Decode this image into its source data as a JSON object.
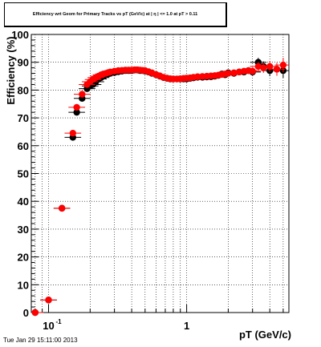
{
  "chart_data": {
    "type": "scatter",
    "title": "Efficiency wrt Geom for Primary Tracks vs pT (GeV/c) at | η | <= 1.0 at pT > 0.11",
    "xlabel": "pT (GeV/c)",
    "ylabel": "Efficiency (%)",
    "xscale": "log",
    "xlim": [
      0.075,
      5.5
    ],
    "ylim": [
      0,
      100
    ],
    "y_ticks": [
      0,
      10,
      20,
      30,
      40,
      50,
      60,
      70,
      80,
      90,
      100
    ],
    "y_tick_labels": [
      "0",
      "10",
      "20",
      "30",
      "40",
      "50",
      "60",
      "70",
      "80",
      "90",
      "100"
    ],
    "x_major_tick_labels": [
      {
        "value": 0.1,
        "label": "10",
        "exponent": "-1"
      },
      {
        "value": 1,
        "label": "1",
        "exponent": ""
      }
    ],
    "grid": true,
    "legend": "none",
    "series": [
      {
        "color": "#000000",
        "x": [
          0.08,
          0.1,
          0.125,
          0.15,
          0.16,
          0.175,
          0.19,
          0.2,
          0.21,
          0.22,
          0.23,
          0.24,
          0.25,
          0.26,
          0.27,
          0.28,
          0.3,
          0.32,
          0.34,
          0.36,
          0.38,
          0.4,
          0.42,
          0.44,
          0.46,
          0.48,
          0.5,
          0.53,
          0.56,
          0.6,
          0.64,
          0.68,
          0.72,
          0.76,
          0.8,
          0.85,
          0.9,
          0.95,
          1.0,
          1.06,
          1.12,
          1.2,
          1.3,
          1.4,
          1.5,
          1.6,
          1.7,
          1.8,
          1.9,
          2.0,
          2.2,
          2.4,
          2.6,
          2.8,
          3.0,
          3.3,
          3.6,
          4.0,
          4.5,
          5.0
        ],
        "y": [
          0.0,
          4.5,
          37.5,
          63.0,
          72.0,
          77.0,
          80.5,
          81.5,
          82.0,
          83.0,
          84.0,
          84.5,
          85.0,
          85.5,
          85.8,
          86.0,
          86.3,
          86.6,
          86.8,
          87.0,
          87.0,
          87.0,
          87.2,
          87.2,
          87.0,
          87.0,
          86.8,
          86.5,
          86.0,
          85.5,
          85.0,
          84.5,
          84.2,
          84.0,
          84.0,
          84.0,
          84.0,
          84.0,
          84.0,
          84.2,
          84.4,
          84.6,
          84.6,
          84.7,
          84.8,
          85.0,
          85.3,
          85.8,
          85.5,
          86.2,
          86.0,
          86.5,
          86.5,
          87.0,
          86.5,
          90.0,
          88.5,
          87.0,
          87.5,
          87.0
        ],
        "yerr": [
          0.3,
          0.5,
          0.4,
          0.4,
          0.4,
          0.4,
          0.3,
          0.3,
          0.3,
          0.3,
          0.3,
          0.3,
          0.3,
          0.3,
          0.3,
          0.3,
          0.3,
          0.3,
          0.3,
          0.3,
          0.3,
          0.3,
          0.3,
          0.3,
          0.3,
          0.3,
          0.3,
          0.3,
          0.3,
          0.3,
          0.3,
          0.3,
          0.3,
          0.3,
          0.3,
          0.3,
          0.3,
          0.3,
          0.3,
          0.3,
          0.3,
          0.3,
          0.4,
          0.4,
          0.4,
          0.5,
          0.5,
          0.6,
          0.6,
          0.7,
          0.8,
          0.9,
          1.0,
          1.2,
          1.4,
          1.6,
          1.8,
          2.0,
          2.3,
          2.6
        ]
      },
      {
        "color": "#ff0000",
        "x": [
          0.08,
          0.1,
          0.125,
          0.15,
          0.16,
          0.175,
          0.19,
          0.2,
          0.21,
          0.22,
          0.23,
          0.24,
          0.25,
          0.26,
          0.27,
          0.28,
          0.3,
          0.32,
          0.34,
          0.36,
          0.38,
          0.4,
          0.42,
          0.44,
          0.46,
          0.48,
          0.5,
          0.53,
          0.56,
          0.6,
          0.64,
          0.68,
          0.72,
          0.76,
          0.8,
          0.85,
          0.9,
          0.95,
          1.0,
          1.06,
          1.12,
          1.2,
          1.3,
          1.4,
          1.5,
          1.6,
          1.7,
          1.8,
          1.9,
          2.0,
          2.2,
          2.4,
          2.6,
          2.8,
          3.0,
          3.3,
          3.6,
          4.0,
          4.5,
          5.0
        ],
        "y": [
          0.0,
          4.5,
          37.5,
          64.5,
          73.8,
          78.5,
          82.0,
          83.0,
          83.8,
          84.5,
          85.0,
          85.5,
          85.8,
          86.0,
          86.3,
          86.5,
          86.8,
          87.0,
          87.1,
          87.2,
          87.2,
          87.2,
          87.3,
          87.3,
          87.2,
          87.1,
          87.0,
          86.6,
          86.2,
          85.6,
          85.1,
          84.6,
          84.3,
          84.1,
          84.0,
          84.0,
          84.1,
          84.2,
          84.3,
          84.4,
          84.6,
          84.8,
          84.9,
          85.0,
          85.1,
          85.2,
          85.4,
          85.6,
          85.8,
          86.0,
          86.2,
          86.5,
          86.8,
          87.0,
          86.8,
          88.5,
          88.0,
          88.5,
          87.5,
          89.0
        ],
        "yerr": [
          0.3,
          0.5,
          0.4,
          0.4,
          0.4,
          0.4,
          0.3,
          0.3,
          0.3,
          0.3,
          0.3,
          0.3,
          0.3,
          0.3,
          0.3,
          0.3,
          0.3,
          0.3,
          0.3,
          0.3,
          0.3,
          0.3,
          0.3,
          0.3,
          0.3,
          0.3,
          0.3,
          0.3,
          0.3,
          0.3,
          0.3,
          0.3,
          0.3,
          0.3,
          0.3,
          0.3,
          0.3,
          0.3,
          0.3,
          0.3,
          0.3,
          0.3,
          0.4,
          0.4,
          0.4,
          0.5,
          0.5,
          0.6,
          0.6,
          0.7,
          0.8,
          0.9,
          1.0,
          1.2,
          1.4,
          1.6,
          1.8,
          2.0,
          2.3,
          2.6
        ]
      }
    ]
  },
  "footer": {
    "timestamp": "Tue Jan 29 15:11:00 2013"
  }
}
